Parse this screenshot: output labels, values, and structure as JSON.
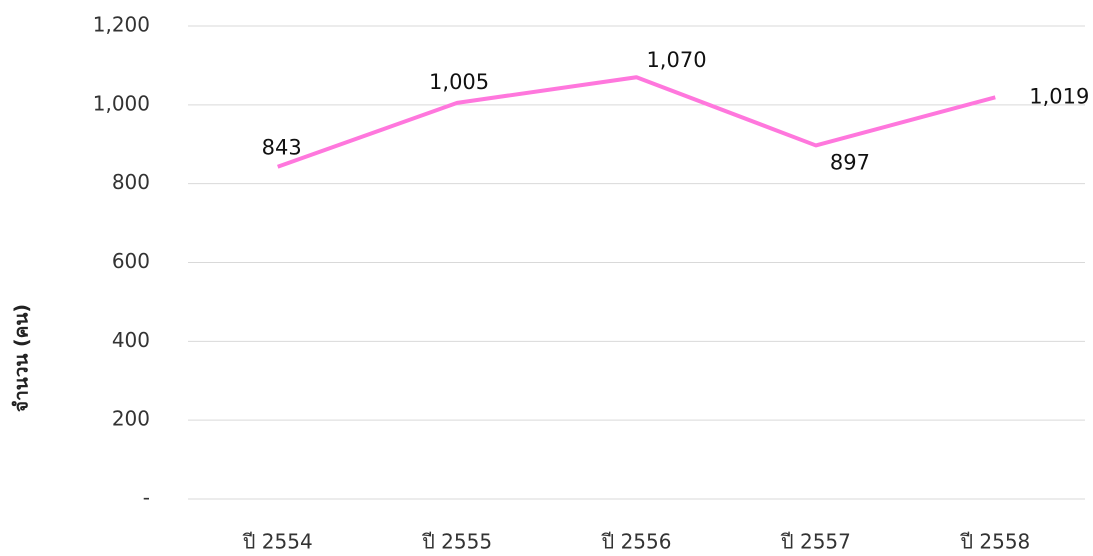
{
  "chart_data": {
    "type": "line",
    "y_label": "จำนวน (คน)",
    "categories": [
      "ปี 2554",
      "ปี 2555",
      "ปี 2556",
      "ปี 2557",
      "ปี 2558"
    ],
    "values": [
      843,
      1005,
      1070,
      897,
      1019
    ],
    "value_labels": [
      "843",
      "1,005",
      "1,070",
      "897",
      "1,019"
    ],
    "color": "#ff77dd",
    "ylim": [
      0,
      1200
    ],
    "yticks": [
      {
        "value": 0,
        "label": "-"
      },
      200,
      400,
      600,
      800,
      {
        "value": 1000,
        "label": "1,000"
      },
      {
        "value": 1200,
        "label": "1,200"
      }
    ],
    "grid": true
  }
}
